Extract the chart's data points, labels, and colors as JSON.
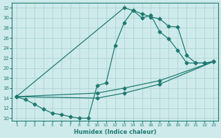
{
  "xlabel": "Humidex (Indice chaleur)",
  "bg_color": "#ceeaea",
  "grid_color": "#a8d0d0",
  "line_color": "#1e7a72",
  "xlim": [
    0.5,
    23.5
  ],
  "ylim": [
    9.5,
    33
  ],
  "xticks": [
    1,
    2,
    3,
    4,
    5,
    6,
    7,
    8,
    9,
    10,
    11,
    12,
    13,
    14,
    15,
    16,
    17,
    18,
    19,
    20,
    21,
    22,
    23
  ],
  "yticks": [
    10,
    12,
    14,
    16,
    18,
    20,
    22,
    24,
    26,
    28,
    30,
    32
  ],
  "line1_x": [
    1,
    2,
    3,
    4,
    5,
    6,
    7,
    8,
    9,
    10,
    11,
    12,
    13,
    14,
    15,
    16,
    17,
    18,
    19,
    20,
    21,
    22,
    23
  ],
  "line1_y": [
    14.3,
    13.7,
    12.8,
    11.8,
    11.0,
    10.7,
    10.3,
    10.0,
    10.0,
    16.5,
    17.0,
    24.5,
    29.0,
    31.5,
    30.8,
    30.2,
    29.8,
    28.3,
    28.2,
    22.5,
    21.0,
    21.0,
    21.3
  ],
  "line2_x": [
    1,
    13,
    14,
    15,
    16,
    17,
    18,
    19,
    20,
    21,
    22,
    23
  ],
  "line2_y": [
    14.3,
    32.0,
    31.5,
    30.0,
    30.5,
    27.2,
    25.8,
    23.5,
    21.0,
    21.0,
    21.0,
    21.3
  ],
  "line3_x": [
    1,
    10,
    13,
    17,
    23
  ],
  "line3_y": [
    14.3,
    15.0,
    16.0,
    17.5,
    21.3
  ],
  "line4_x": [
    1,
    10,
    13,
    17,
    23
  ],
  "line4_y": [
    14.3,
    14.0,
    15.0,
    16.8,
    21.3
  ]
}
